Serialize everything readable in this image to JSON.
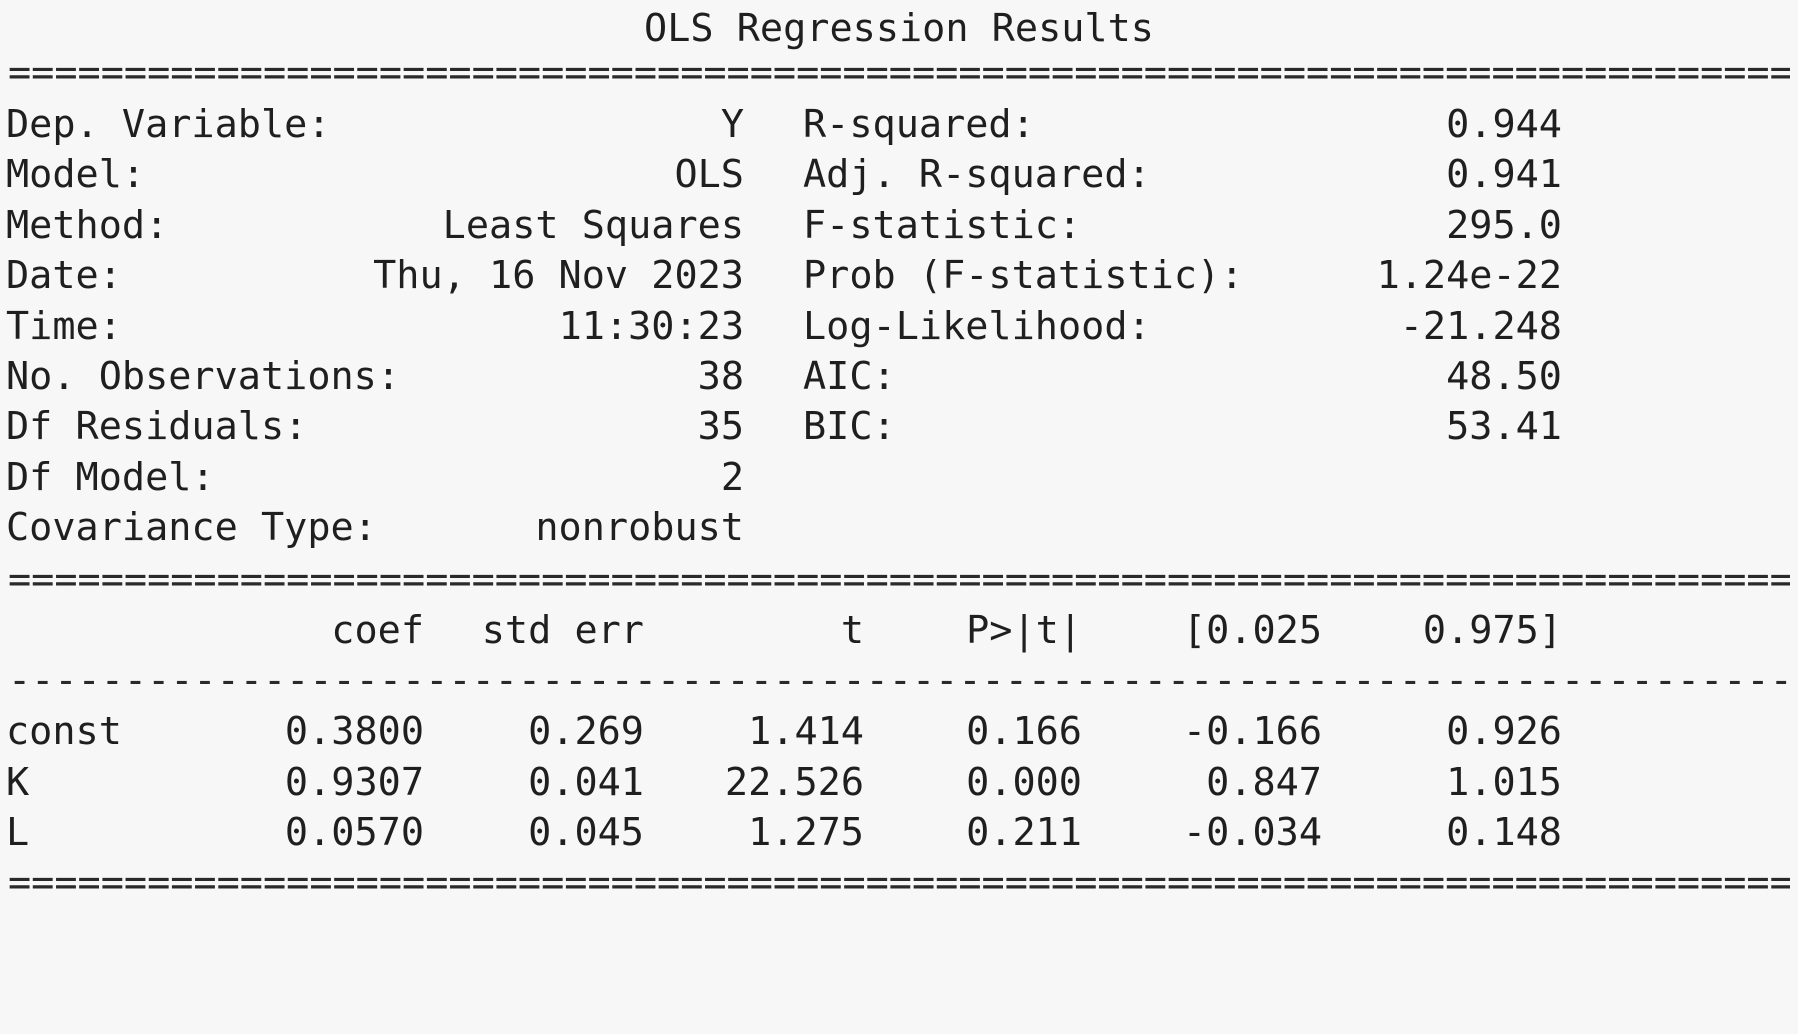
{
  "title": "OLS Regression Results",
  "rule_double": "====================================================================================================",
  "rule_single": "----------------------------------------------------------------------------------------------------",
  "summary_left": [
    {
      "label": "Dep. Variable:",
      "value": "Y"
    },
    {
      "label": "Model:",
      "value": "OLS"
    },
    {
      "label": "Method:",
      "value": "Least Squares"
    },
    {
      "label": "Date:",
      "value": "Thu, 16 Nov 2023"
    },
    {
      "label": "Time:",
      "value": "11:30:23"
    },
    {
      "label": "No. Observations:",
      "value": "38"
    },
    {
      "label": "Df Residuals:",
      "value": "35"
    },
    {
      "label": "Df Model:",
      "value": "2"
    },
    {
      "label": "Covariance Type:",
      "value": "nonrobust"
    }
  ],
  "summary_right": [
    {
      "label": "R-squared:",
      "value": "0.944"
    },
    {
      "label": "Adj. R-squared:",
      "value": "0.941"
    },
    {
      "label": "F-statistic:",
      "value": "295.0"
    },
    {
      "label": "Prob (F-statistic):",
      "value": "1.24e-22"
    },
    {
      "label": "Log-Likelihood:",
      "value": "-21.248"
    },
    {
      "label": "AIC:",
      "value": "48.50"
    },
    {
      "label": "BIC:",
      "value": "53.41"
    }
  ],
  "coef_table": {
    "headers": [
      "coef",
      "std err",
      "t",
      "P>|t|",
      "[0.025",
      "0.975]"
    ],
    "rows": [
      {
        "name": "const",
        "values": [
          "0.3800",
          "0.269",
          "1.414",
          "0.166",
          "-0.166",
          "0.926"
        ]
      },
      {
        "name": "K",
        "values": [
          "0.9307",
          "0.041",
          "22.526",
          "0.000",
          "0.847",
          "1.015"
        ]
      },
      {
        "name": "L",
        "values": [
          "0.0570",
          "0.045",
          "1.275",
          "0.211",
          "-0.034",
          "0.148"
        ]
      }
    ]
  }
}
